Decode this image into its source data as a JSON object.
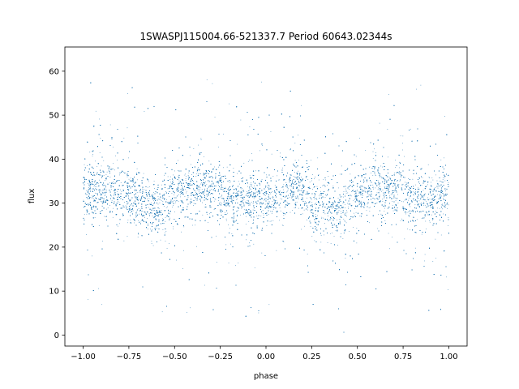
{
  "chart_data": {
    "type": "scatter",
    "title": "1SWASPJ115004.66-521337.7 Period 60643.02344s",
    "xlabel": "phase",
    "ylabel": "flux",
    "xlim": [
      -1.1,
      1.1
    ],
    "ylim": [
      -2.5,
      65.5
    ],
    "xticks": [
      -1.0,
      -0.75,
      -0.5,
      -0.25,
      0.0,
      0.25,
      0.5,
      0.75,
      1.0
    ],
    "xtick_labels": [
      "−1.00",
      "−0.75",
      "−0.50",
      "−0.25",
      "0.00",
      "0.25",
      "0.50",
      "0.75",
      "1.00"
    ],
    "yticks": [
      0,
      10,
      20,
      30,
      40,
      50,
      60
    ],
    "ytick_labels": [
      "0",
      "10",
      "20",
      "30",
      "40",
      "50",
      "60"
    ],
    "grid": false,
    "point_color": "#1f77b4",
    "trend": {
      "phase": [
        -1.0,
        -0.9,
        -0.8,
        -0.7,
        -0.6,
        -0.5,
        -0.4,
        -0.3,
        -0.2,
        -0.1,
        0.0,
        0.1,
        0.15,
        0.2,
        0.3,
        0.4,
        0.5,
        0.6,
        0.7,
        0.8,
        0.9,
        1.0
      ],
      "flux": [
        32.0,
        33.5,
        33.0,
        30.5,
        29.2,
        31.5,
        33.5,
        33.5,
        31.5,
        30.5,
        30.5,
        32.5,
        33.2,
        32.5,
        30.0,
        28.8,
        31.5,
        33.5,
        33.0,
        31.0,
        30.5,
        32.0
      ]
    },
    "scatter_spread": 3.2,
    "n_points": 26000
  }
}
